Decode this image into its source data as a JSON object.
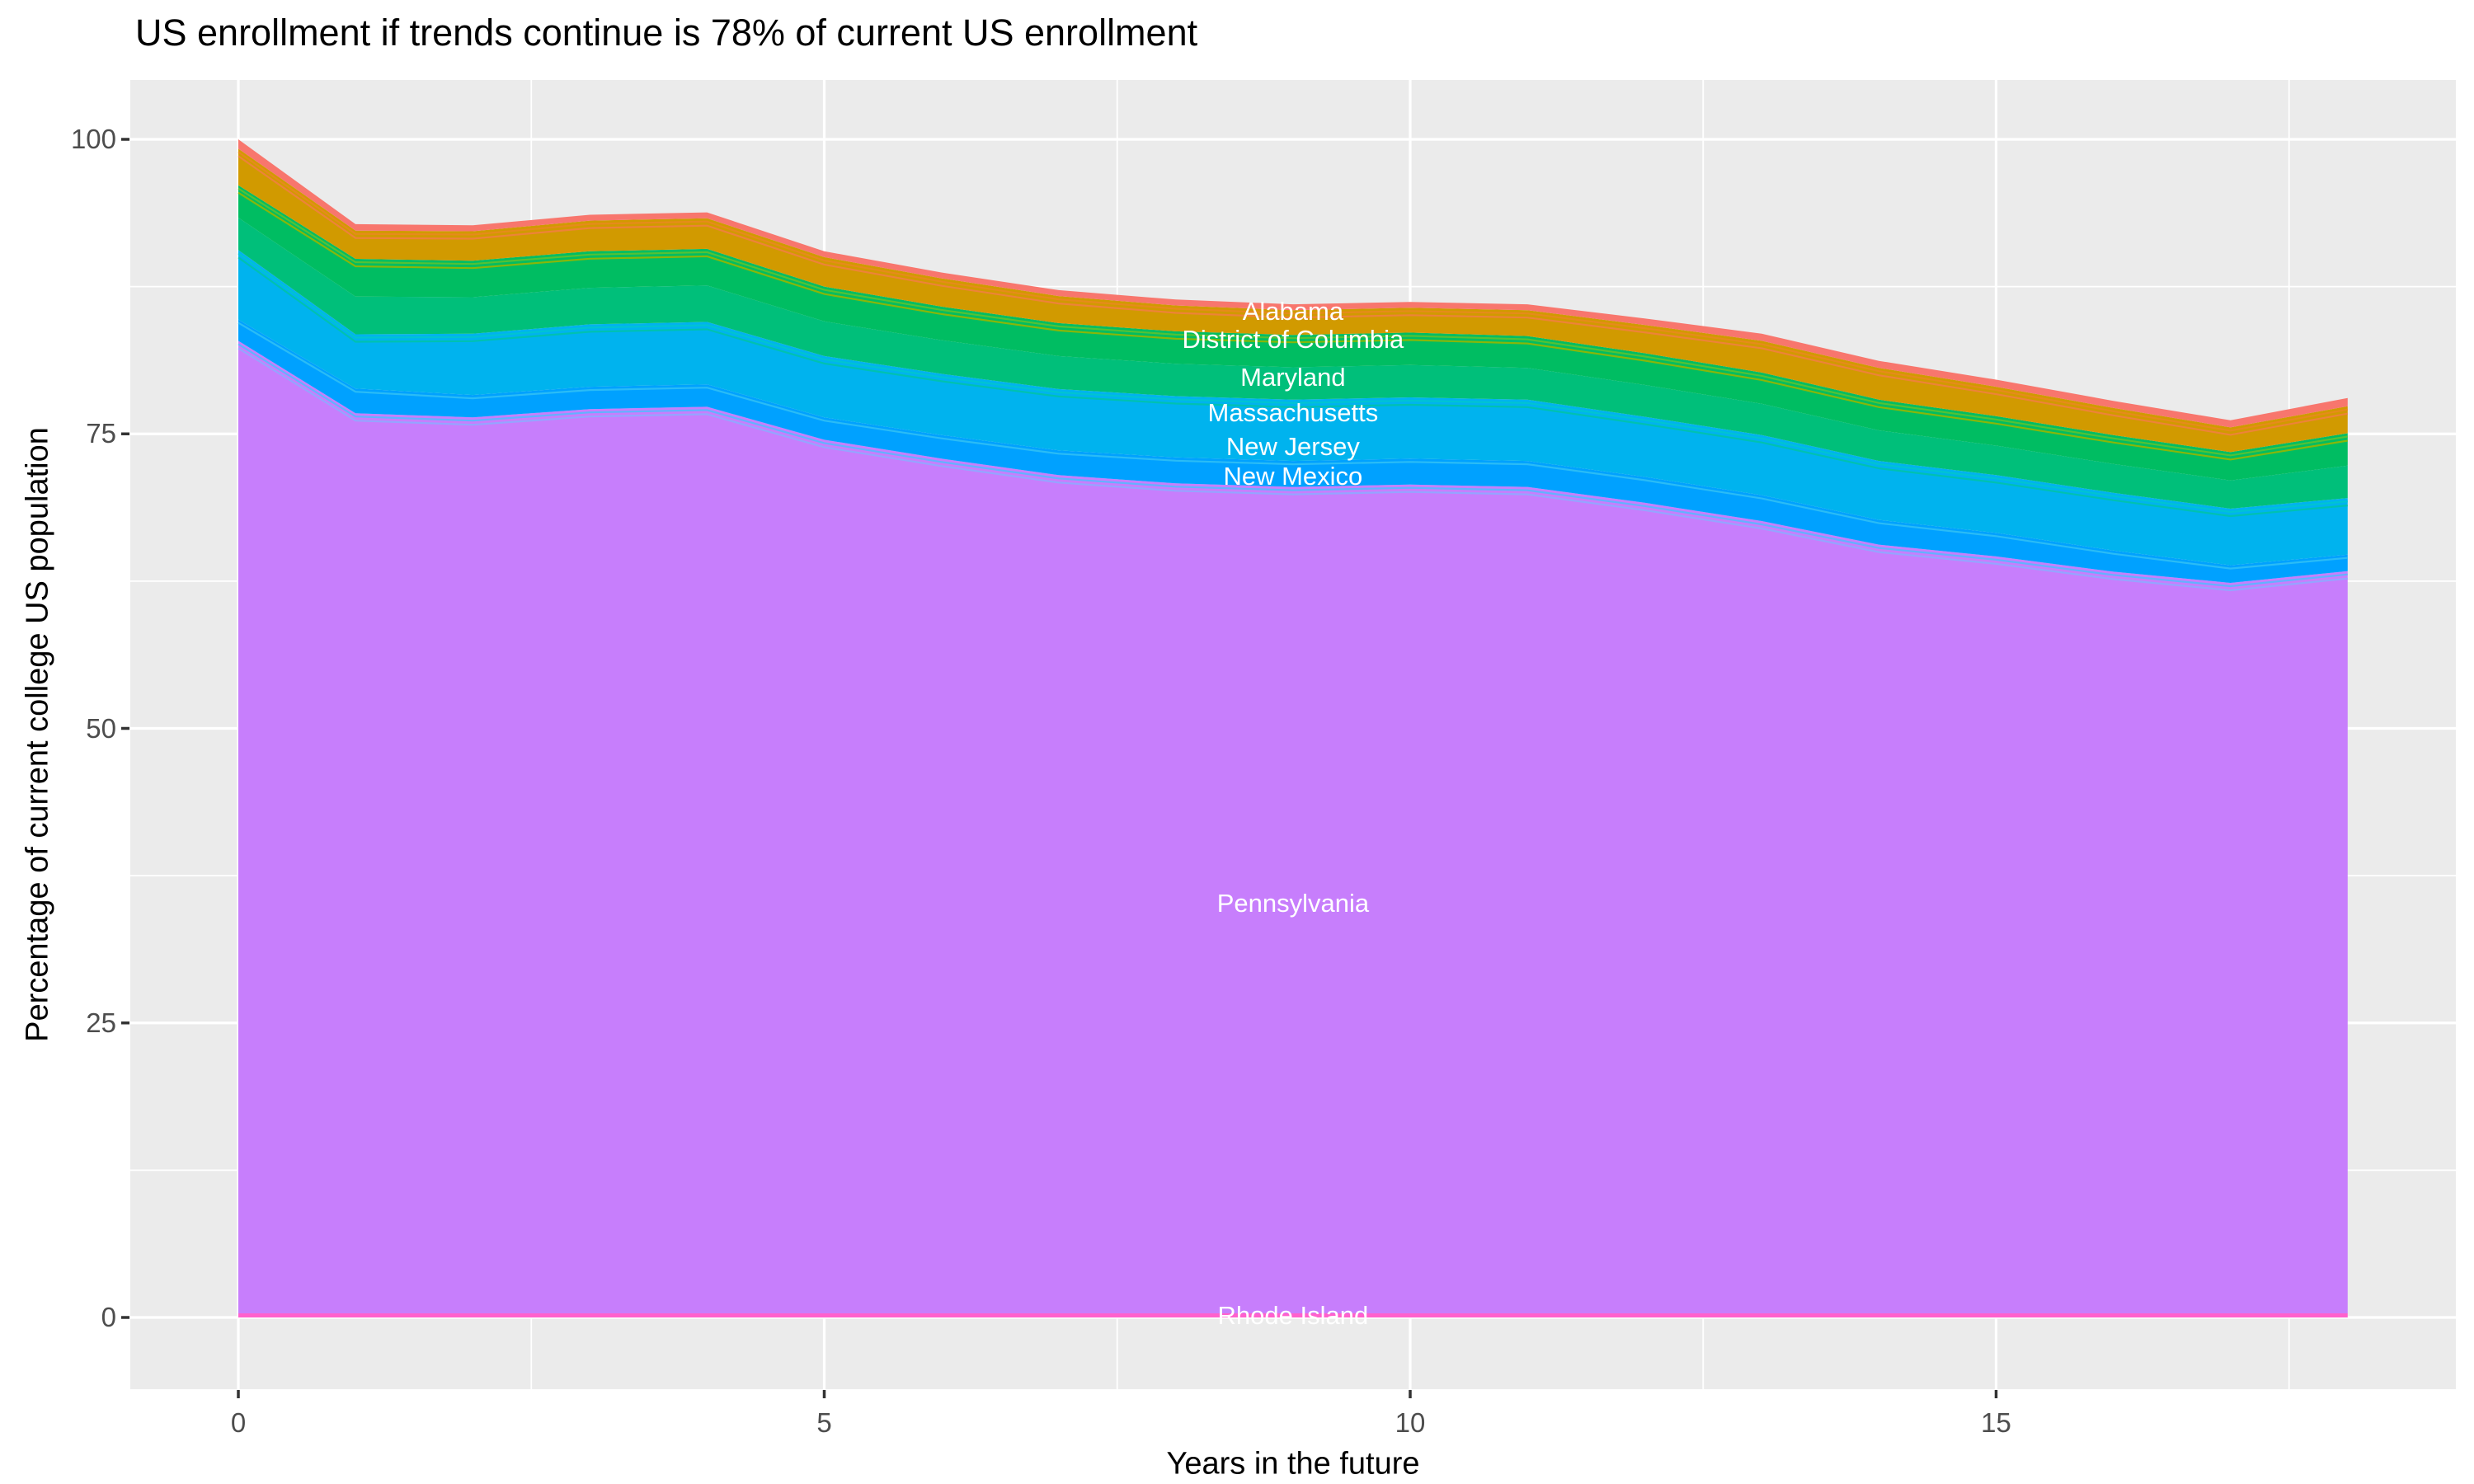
{
  "title": "US enrollment if trends continue is 78% of current US enrollment",
  "axes": {
    "x": {
      "label": "Years in the future",
      "ticks": [
        0,
        5,
        10,
        15
      ],
      "tick_labels": [
        "0",
        "5",
        "10",
        "15"
      ],
      "minor_gridlines": [
        2.5,
        7.5,
        12.5,
        17.5
      ],
      "range": [
        -0.9,
        18.9
      ]
    },
    "y": {
      "label": "Percentage of current college US population",
      "ticks": [
        0,
        25,
        50,
        75,
        100
      ],
      "tick_labels": [
        "0",
        "25",
        "50",
        "75",
        "100"
      ],
      "minor_gridlines": [
        12.5,
        37.5,
        62.5,
        87.5
      ],
      "range": [
        -5,
        105
      ]
    }
  },
  "colors": {
    "background": "#ffffff",
    "panel": "#ebebeb",
    "gridline": "#ffffff",
    "tick_mark": "#333333",
    "tick_label": "#4d4d4d",
    "title_text": "#000000",
    "series_label_text": "#ffffff"
  },
  "chart_data": {
    "type": "area",
    "stacked": true,
    "stack_order": "bottom-to-top",
    "title": "US enrollment if trends continue is 78% of current US enrollment",
    "xlabel": "Years in the future",
    "ylabel": "Percentage of current college US population",
    "xlim": [
      -0.9,
      18.9
    ],
    "ylim": [
      -5,
      105
    ],
    "grid": true,
    "legend": "none (series labeled with white text inside bands)",
    "x": [
      0,
      1,
      2,
      3,
      4,
      5,
      6,
      7,
      8,
      9,
      10,
      11,
      12,
      13,
      14,
      15,
      16,
      17,
      18
    ],
    "total_top_of_stack": [
      100,
      92.8,
      92.7,
      93.6,
      93.8,
      90.5,
      88.7,
      87.2,
      86.4,
      86.0,
      86.2,
      86.0,
      84.8,
      83.5,
      81.2,
      79.6,
      77.8,
      76.2,
      78.0
    ],
    "series": [
      {
        "name": "Rhode Island",
        "color": "#FF61CC",
        "values": [
          0.35,
          0.35,
          0.35,
          0.35,
          0.35,
          0.35,
          0.35,
          0.35,
          0.35,
          0.35,
          0.35,
          0.35,
          0.35,
          0.35,
          0.35,
          0.35,
          0.35,
          0.35,
          0.35
        ],
        "label": {
          "x": 9.0,
          "y": 0.14
        },
        "top_stripes": []
      },
      {
        "name": "Pennsylvania",
        "color": "#C77EFC",
        "values": [
          82.55,
          76.4,
          76.05,
          76.75,
          76.95,
          74.15,
          72.55,
          71.15,
          70.45,
          70.15,
          70.35,
          70.15,
          68.8,
          67.25,
          65.25,
          64.25,
          62.95,
          62.0,
          63.0
        ],
        "label": {
          "x": 9.0,
          "y": 35.1
        },
        "top_stripes": [
          "#57B8FF",
          "#8FA8FF"
        ]
      },
      {
        "name": "New Mexico",
        "color": "#00A1FF",
        "values": [
          1.8,
          2.1,
          1.9,
          1.9,
          1.9,
          1.9,
          2.0,
          2.1,
          2.2,
          2.2,
          2.2,
          2.2,
          2.2,
          2.2,
          2.1,
          2.0,
          1.8,
          1.5,
          1.4
        ],
        "label": {
          "x": 9.0,
          "y": 71.4
        },
        "top_stripes": [
          "#2FBFF5"
        ]
      },
      {
        "name": "New Jersey",
        "color": "#00B3EE",
        "values": [
          5.9,
          4.6,
          5.2,
          5.3,
          5.3,
          5.2,
          5.2,
          5.2,
          5.2,
          5.2,
          5.2,
          5.2,
          5.1,
          5.1,
          5.0,
          4.9,
          4.9,
          4.8,
          4.8
        ],
        "label": {
          "x": 9.0,
          "y": 73.9
        },
        "top_stripes": [
          "#00C4CF",
          "#00C2A8"
        ]
      },
      {
        "name": "Massachusetts",
        "color": "#00BF7A",
        "values": [
          2.75,
          3.2,
          3.1,
          3.1,
          3.1,
          2.95,
          2.85,
          2.8,
          2.75,
          2.75,
          2.75,
          2.7,
          2.7,
          2.65,
          2.6,
          2.5,
          2.45,
          2.4,
          2.75
        ],
        "label": {
          "x": 9.0,
          "y": 76.8
        },
        "top_stripes": []
      },
      {
        "name": "Maryland",
        "color": "#00BD62",
        "values": [
          2.75,
          3.2,
          3.1,
          3.1,
          3.1,
          2.95,
          2.85,
          2.8,
          2.75,
          2.75,
          2.75,
          2.7,
          2.7,
          2.65,
          2.6,
          2.5,
          2.45,
          2.4,
          2.75
        ],
        "label": {
          "x": 9.0,
          "y": 79.8
        },
        "top_stripes": [
          "#5BC232",
          "#97B600"
        ]
      },
      {
        "name": "District of Columbia",
        "color": "#D19A00",
        "values": [
          3.1,
          2.4,
          2.5,
          2.6,
          2.6,
          2.5,
          2.4,
          2.3,
          2.2,
          2.1,
          2.1,
          2.2,
          2.4,
          2.7,
          2.7,
          2.5,
          2.3,
          2.1,
          2.3
        ],
        "label": {
          "x": 9.0,
          "y": 83.0
        },
        "top_stripes": [
          "#E88A1E",
          "#F0813F"
        ]
      },
      {
        "name": "Alabama",
        "color": "#F8766D",
        "values": [
          0.8,
          0.55,
          0.5,
          0.5,
          0.5,
          0.5,
          0.5,
          0.5,
          0.5,
          0.5,
          0.5,
          0.5,
          0.55,
          0.6,
          0.6,
          0.6,
          0.6,
          0.6,
          0.7
        ],
        "label": {
          "x": 9.0,
          "y": 85.4
        },
        "top_stripes": []
      }
    ]
  }
}
